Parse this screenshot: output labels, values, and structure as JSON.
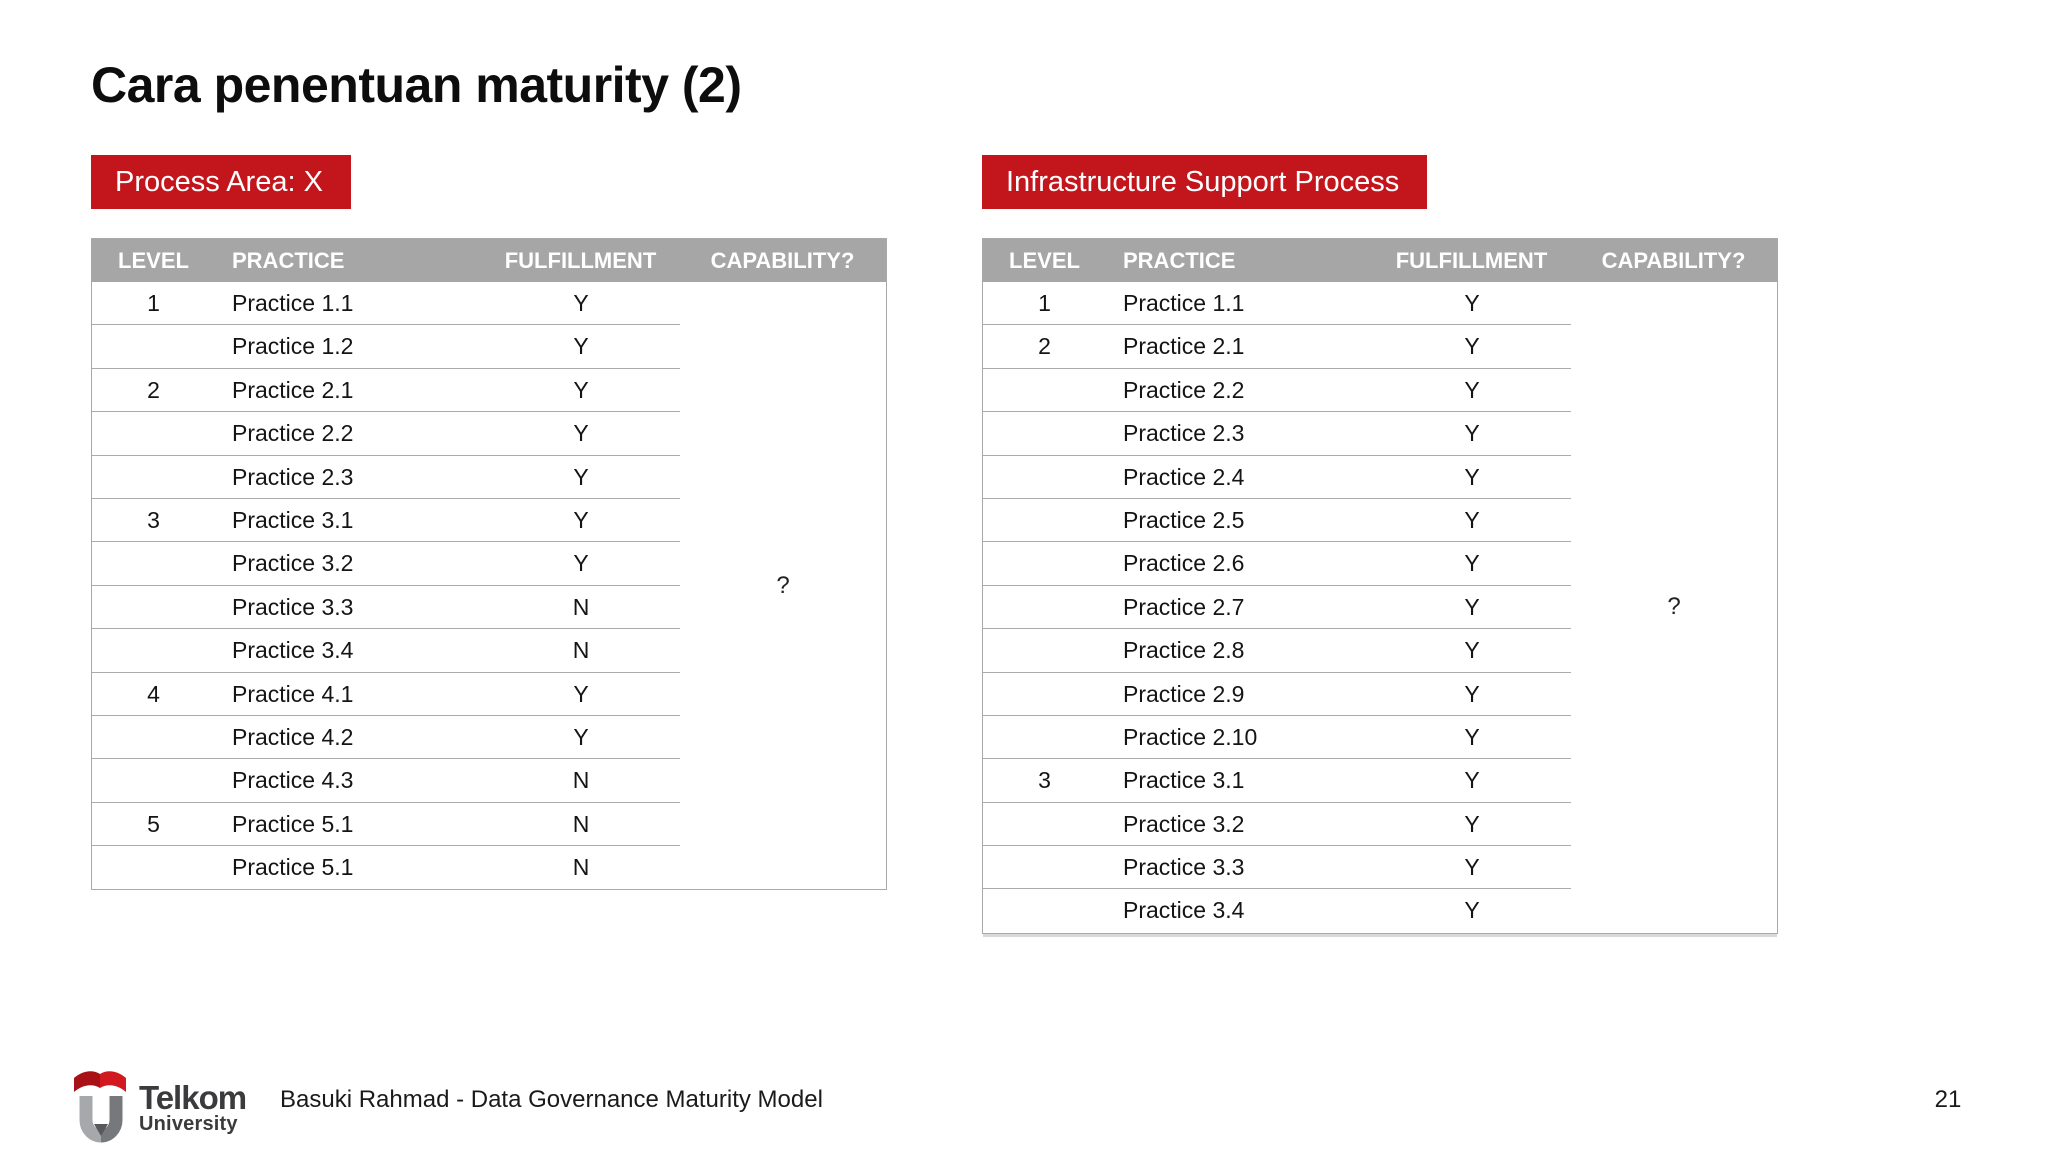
{
  "slide": {
    "title": "Cara penentuan maturity (2)",
    "footer": "Basuki Rahmad - Data Governance Maturity Model",
    "page_number": "21",
    "logo_line1": "Telkom",
    "logo_line2": "University"
  },
  "colors": {
    "banner_red": "#C3161C",
    "header_gray": "#A6A6A6",
    "row_line": "#ABABAB"
  },
  "tables": [
    {
      "banner": "Process Area: X",
      "columns": [
        "LEVEL",
        "PRACTICE",
        "FULFILLMENT",
        "CAPABILITY?"
      ],
      "capability_value": "?",
      "rows": [
        {
          "level": "1",
          "practice": "Practice 1.1",
          "fulfillment": "Y"
        },
        {
          "level": "",
          "practice": "Practice 1.2",
          "fulfillment": "Y"
        },
        {
          "level": "2",
          "practice": "Practice 2.1",
          "fulfillment": "Y"
        },
        {
          "level": "",
          "practice": "Practice 2.2",
          "fulfillment": "Y"
        },
        {
          "level": "",
          "practice": "Practice 2.3",
          "fulfillment": "Y"
        },
        {
          "level": "3",
          "practice": "Practice 3.1",
          "fulfillment": "Y"
        },
        {
          "level": "",
          "practice": "Practice 3.2",
          "fulfillment": "Y"
        },
        {
          "level": "",
          "practice": "Practice 3.3",
          "fulfillment": "N"
        },
        {
          "level": "",
          "practice": "Practice 3.4",
          "fulfillment": "N"
        },
        {
          "level": "4",
          "practice": "Practice 4.1",
          "fulfillment": "Y"
        },
        {
          "level": "",
          "practice": "Practice 4.2",
          "fulfillment": "Y"
        },
        {
          "level": "",
          "practice": "Practice 4.3",
          "fulfillment": "N"
        },
        {
          "level": "5",
          "practice": "Practice 5.1",
          "fulfillment": "N"
        },
        {
          "level": "",
          "practice": "Practice 5.1",
          "fulfillment": "N"
        }
      ]
    },
    {
      "banner": "Infrastructure Support Process",
      "columns": [
        "LEVEL",
        "PRACTICE",
        "FULFILLMENT",
        "CAPABILITY?"
      ],
      "capability_value": "?",
      "rows": [
        {
          "level": "1",
          "practice": "Practice 1.1",
          "fulfillment": "Y"
        },
        {
          "level": "2",
          "practice": "Practice 2.1",
          "fulfillment": "Y"
        },
        {
          "level": "",
          "practice": "Practice 2.2",
          "fulfillment": "Y"
        },
        {
          "level": "",
          "practice": "Practice 2.3",
          "fulfillment": "Y"
        },
        {
          "level": "",
          "practice": "Practice 2.4",
          "fulfillment": "Y"
        },
        {
          "level": "",
          "practice": "Practice 2.5",
          "fulfillment": "Y"
        },
        {
          "level": "",
          "practice": "Practice 2.6",
          "fulfillment": "Y"
        },
        {
          "level": "",
          "practice": "Practice 2.7",
          "fulfillment": "Y"
        },
        {
          "level": "",
          "practice": "Practice 2.8",
          "fulfillment": "Y"
        },
        {
          "level": "",
          "practice": "Practice 2.9",
          "fulfillment": "Y"
        },
        {
          "level": "",
          "practice": "Practice 2.10",
          "fulfillment": "Y"
        },
        {
          "level": "3",
          "practice": "Practice 3.1",
          "fulfillment": "Y"
        },
        {
          "level": "",
          "practice": "Practice 3.2",
          "fulfillment": "Y"
        },
        {
          "level": "",
          "practice": "Practice 3.3",
          "fulfillment": "Y"
        },
        {
          "level": "",
          "practice": "Practice 3.4",
          "fulfillment": "Y"
        }
      ]
    }
  ]
}
